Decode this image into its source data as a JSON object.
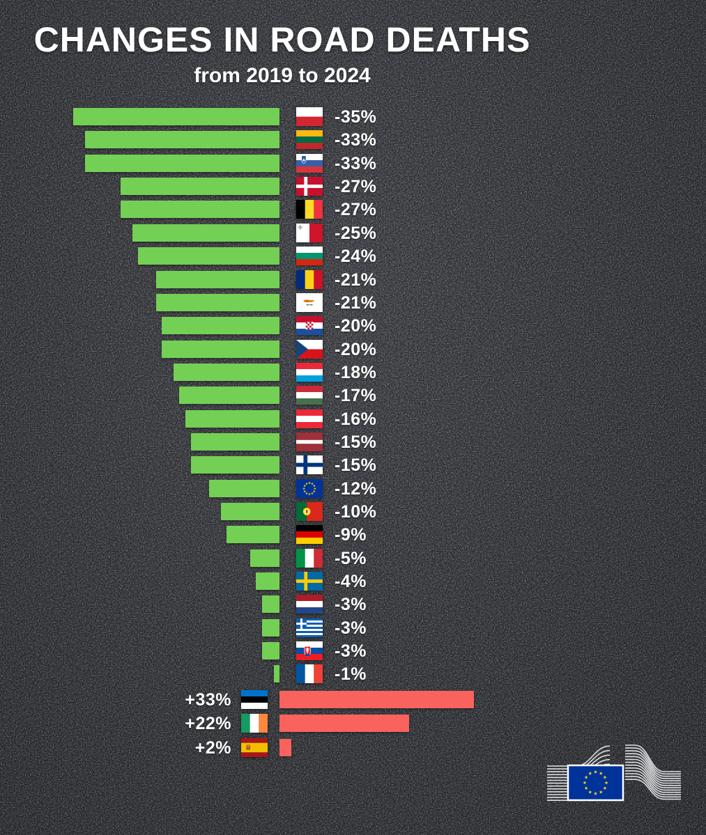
{
  "header": {
    "title": "CHANGES IN ROAD DEATHS",
    "subtitle": "from 2019 to 2024"
  },
  "chart_data": {
    "type": "bar",
    "orientation": "horizontal",
    "title": "CHANGES IN ROAD DEATHS",
    "subtitle": "from 2019 to 2024",
    "value_unit": "percent change in road deaths 2019-2024",
    "axes_shown": false,
    "grid": false,
    "data_labels_shown": true,
    "colors": {
      "decrease_bar": "#74d054",
      "increase_bar": "#fa625e",
      "background": "#2a2c2f",
      "label_text": "#ffffff"
    },
    "rows": [
      {
        "country": "Poland",
        "code": "pl",
        "value": -35,
        "label": "-35%"
      },
      {
        "country": "Lithuania",
        "code": "lt",
        "value": -33,
        "label": "-33%"
      },
      {
        "country": "Slovenia",
        "code": "si",
        "value": -33,
        "label": "-33%"
      },
      {
        "country": "Denmark",
        "code": "dk",
        "value": -27,
        "label": "-27%"
      },
      {
        "country": "Belgium",
        "code": "be",
        "value": -27,
        "label": "-27%"
      },
      {
        "country": "Malta",
        "code": "mt",
        "value": -25,
        "label": "-25%"
      },
      {
        "country": "Bulgaria",
        "code": "bg",
        "value": -24,
        "label": "-24%"
      },
      {
        "country": "Romania",
        "code": "ro",
        "value": -21,
        "label": "-21%"
      },
      {
        "country": "Cyprus",
        "code": "cy",
        "value": -21,
        "label": "-21%"
      },
      {
        "country": "Croatia",
        "code": "hr",
        "value": -20,
        "label": "-20%"
      },
      {
        "country": "Czechia",
        "code": "cz",
        "value": -20,
        "label": "-20%"
      },
      {
        "country": "Luxembourg",
        "code": "lu",
        "value": -18,
        "label": "-18%"
      },
      {
        "country": "Hungary",
        "code": "hu",
        "value": -17,
        "label": "-17%"
      },
      {
        "country": "Austria",
        "code": "at",
        "value": -16,
        "label": "-16%"
      },
      {
        "country": "Latvia",
        "code": "lv",
        "value": -15,
        "label": "-15%"
      },
      {
        "country": "Finland",
        "code": "fi",
        "value": -15,
        "label": "-15%"
      },
      {
        "country": "European Union",
        "code": "eu",
        "value": -12,
        "label": "-12%"
      },
      {
        "country": "Portugal",
        "code": "pt",
        "value": -10,
        "label": "-10%"
      },
      {
        "country": "Germany",
        "code": "de",
        "value": -9,
        "label": "-9%"
      },
      {
        "country": "Italy",
        "code": "it",
        "value": -5,
        "label": "-5%"
      },
      {
        "country": "Sweden",
        "code": "se",
        "value": -4,
        "label": "-4%"
      },
      {
        "country": "Netherlands",
        "code": "nl",
        "value": -3,
        "label": "-3%"
      },
      {
        "country": "Greece",
        "code": "gr",
        "value": -3,
        "label": "-3%"
      },
      {
        "country": "Slovakia",
        "code": "sk",
        "value": -3,
        "label": "-3%"
      },
      {
        "country": "France",
        "code": "fr",
        "value": -1,
        "label": "-1%"
      },
      {
        "country": "Estonia",
        "code": "ee",
        "value": 33,
        "label": "+33%"
      },
      {
        "country": "Ireland",
        "code": "ie",
        "value": 22,
        "label": "+22%"
      },
      {
        "country": "Spain",
        "code": "es",
        "value": 2,
        "label": "+2%"
      }
    ]
  },
  "footer": {
    "logo": "european-commission-logo"
  }
}
